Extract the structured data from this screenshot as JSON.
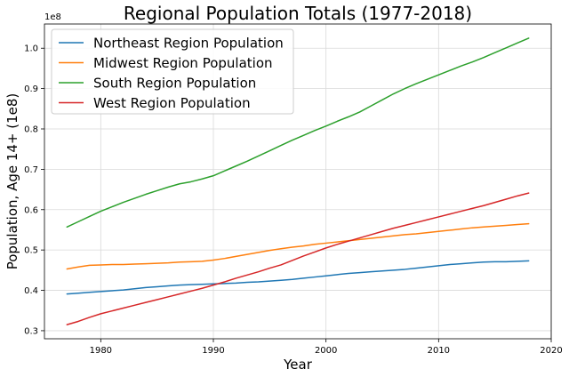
{
  "chart_data": {
    "type": "line",
    "title": "Regional Population Totals (1977-2018)",
    "xlabel": "Year",
    "ylabel": "Population, Age 14+ (1e8)",
    "y_offset_label": "1e8",
    "xlim": [
      1975,
      2020
    ],
    "ylim": [
      0.28,
      1.06
    ],
    "x_ticks": [
      1980,
      1990,
      2000,
      2010,
      2020
    ],
    "x_tick_labels": [
      "1980",
      "1990",
      "2000",
      "2010",
      "2020"
    ],
    "y_ticks": [
      0.3,
      0.4,
      0.5,
      0.6,
      0.7,
      0.8,
      0.9,
      1.0
    ],
    "y_tick_labels": [
      "0.3",
      "0.4",
      "0.5",
      "0.6",
      "0.7",
      "0.8",
      "0.9",
      "1.0"
    ],
    "grid": true,
    "legend_position": "top-left",
    "x": [
      1977,
      1978,
      1979,
      1980,
      1981,
      1982,
      1983,
      1984,
      1985,
      1986,
      1987,
      1988,
      1989,
      1990,
      1991,
      1992,
      1993,
      1994,
      1995,
      1996,
      1997,
      1998,
      1999,
      2000,
      2001,
      2002,
      2003,
      2004,
      2005,
      2006,
      2007,
      2008,
      2009,
      2010,
      2011,
      2012,
      2013,
      2014,
      2015,
      2016,
      2017,
      2018
    ],
    "series": [
      {
        "name": "Northeast Region Population",
        "color": "#1f77b4",
        "values": [
          0.391,
          0.393,
          0.395,
          0.397,
          0.399,
          0.401,
          0.404,
          0.407,
          0.409,
          0.411,
          0.413,
          0.414,
          0.415,
          0.416,
          0.417,
          0.418,
          0.42,
          0.421,
          0.423,
          0.425,
          0.427,
          0.43,
          0.433,
          0.436,
          0.439,
          0.442,
          0.444,
          0.446,
          0.448,
          0.45,
          0.452,
          0.455,
          0.458,
          0.461,
          0.464,
          0.466,
          0.468,
          0.47,
          0.471,
          0.471,
          0.472,
          0.473
        ]
      },
      {
        "name": "Midwest Region Population",
        "color": "#ff7f0e",
        "values": [
          0.453,
          0.458,
          0.462,
          0.463,
          0.464,
          0.464,
          0.465,
          0.466,
          0.467,
          0.468,
          0.47,
          0.471,
          0.472,
          0.475,
          0.479,
          0.484,
          0.489,
          0.494,
          0.499,
          0.503,
          0.507,
          0.51,
          0.514,
          0.517,
          0.52,
          0.523,
          0.526,
          0.529,
          0.532,
          0.535,
          0.538,
          0.54,
          0.543,
          0.546,
          0.549,
          0.552,
          0.555,
          0.557,
          0.559,
          0.561,
          0.563,
          0.565
        ]
      },
      {
        "name": "South Region Population",
        "color": "#2ca02c",
        "values": [
          0.557,
          0.57,
          0.583,
          0.596,
          0.607,
          0.618,
          0.628,
          0.638,
          0.647,
          0.656,
          0.664,
          0.669,
          0.676,
          0.684,
          0.696,
          0.708,
          0.72,
          0.733,
          0.746,
          0.759,
          0.772,
          0.784,
          0.796,
          0.807,
          0.819,
          0.83,
          0.842,
          0.857,
          0.872,
          0.887,
          0.9,
          0.912,
          0.923,
          0.934,
          0.945,
          0.956,
          0.966,
          0.977,
          0.989,
          1.001,
          1.013,
          1.025
        ]
      },
      {
        "name": "West Region Population",
        "color": "#d62728",
        "values": [
          0.315,
          0.323,
          0.333,
          0.342,
          0.349,
          0.356,
          0.363,
          0.37,
          0.377,
          0.384,
          0.391,
          0.398,
          0.405,
          0.413,
          0.421,
          0.43,
          0.438,
          0.446,
          0.455,
          0.463,
          0.474,
          0.485,
          0.495,
          0.505,
          0.514,
          0.522,
          0.53,
          0.538,
          0.546,
          0.554,
          0.561,
          0.568,
          0.575,
          0.582,
          0.589,
          0.596,
          0.603,
          0.61,
          0.618,
          0.626,
          0.634,
          0.641
        ]
      }
    ]
  }
}
